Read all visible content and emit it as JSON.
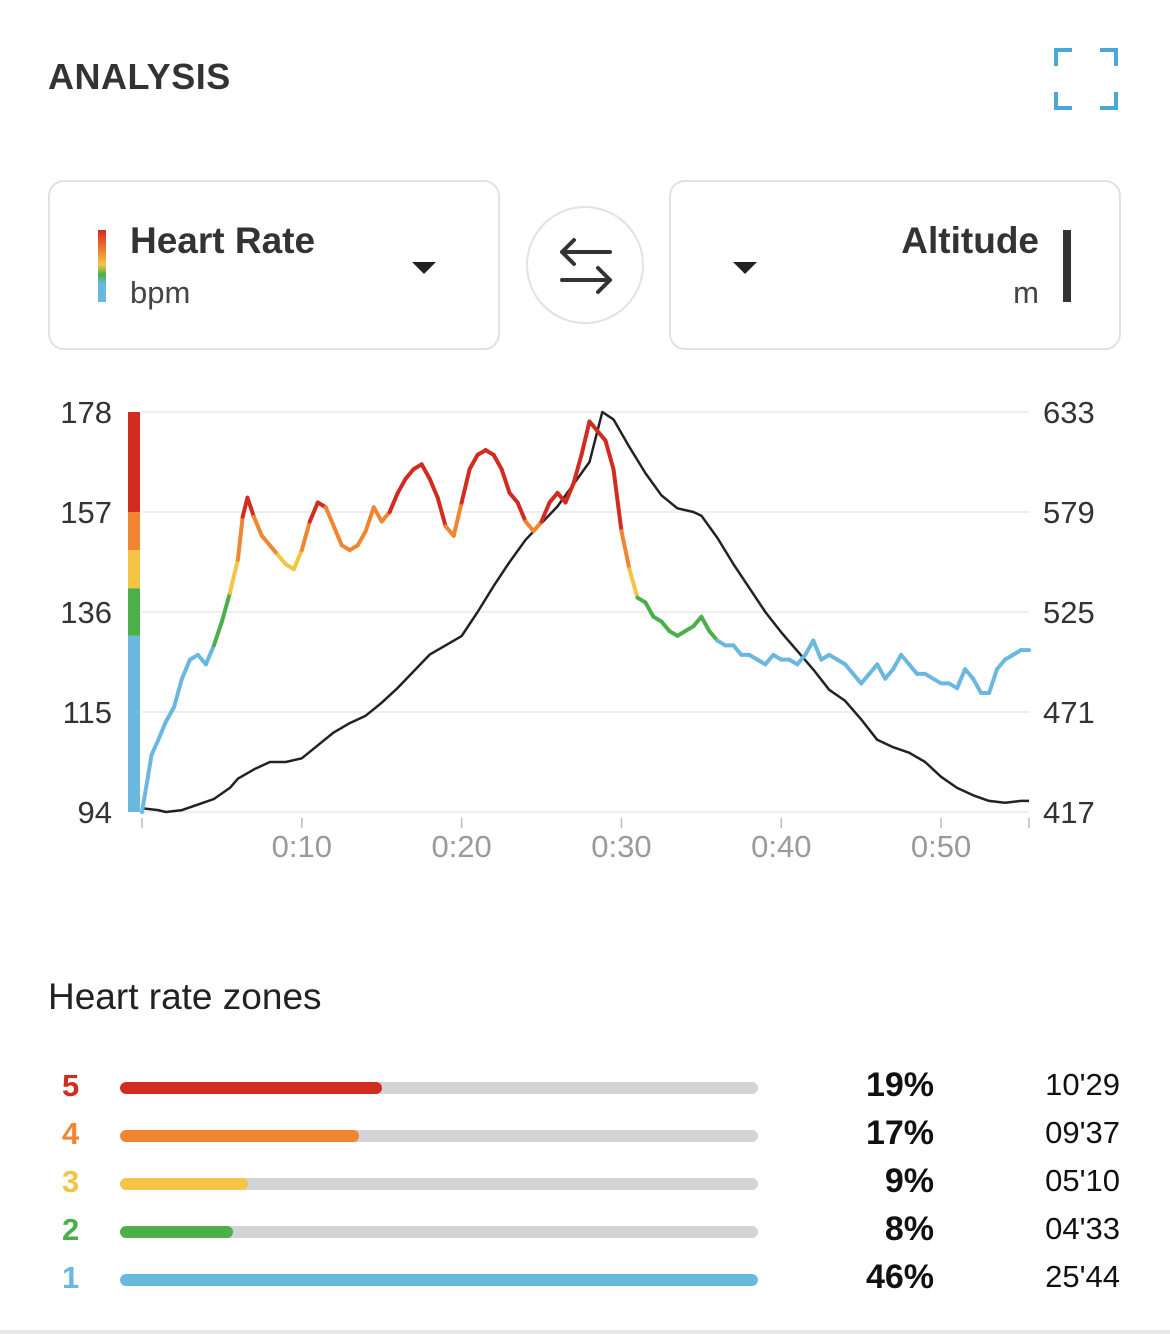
{
  "header": {
    "title": "ANALYSIS"
  },
  "selectors": {
    "left": {
      "name": "Heart Rate",
      "unit": "bpm"
    },
    "right": {
      "name": "Altitude",
      "unit": "m"
    }
  },
  "colors": {
    "zone5": "#d22b1f",
    "zone4": "#f08532",
    "zone3": "#f5c445",
    "zone2": "#4caf4a",
    "zone1": "#6ab8e0",
    "altitude": "#222222",
    "accent": "#4aa8d8"
  },
  "chart_data": {
    "type": "line",
    "x_unit": "minutes",
    "xlim": [
      0,
      55.5
    ],
    "x_ticks": [
      {
        "value": 10,
        "label": "0:10"
      },
      {
        "value": 20,
        "label": "0:20"
      },
      {
        "value": 30,
        "label": "0:30"
      },
      {
        "value": 40,
        "label": "0:40"
      },
      {
        "value": 50,
        "label": "0:50"
      }
    ],
    "y_left": {
      "label": "Heart Rate (bpm)",
      "lim": [
        94,
        178
      ],
      "ticks": [
        "178",
        "157",
        "136",
        "115",
        "94"
      ]
    },
    "y_right": {
      "label": "Altitude (m)",
      "lim": [
        417,
        633
      ],
      "ticks": [
        "633",
        "579",
        "525",
        "471",
        "417"
      ]
    },
    "zone_bounds_bpm": [
      94,
      131,
      141,
      149,
      157,
      178
    ],
    "series": [
      {
        "name": "Heart Rate",
        "axis": "left",
        "points": [
          [
            0.0,
            94
          ],
          [
            0.3,
            100
          ],
          [
            0.6,
            106
          ],
          [
            1.0,
            109
          ],
          [
            1.5,
            113
          ],
          [
            2.0,
            116
          ],
          [
            2.5,
            122
          ],
          [
            3.0,
            126
          ],
          [
            3.5,
            127
          ],
          [
            4.0,
            125
          ],
          [
            4.5,
            129
          ],
          [
            5.0,
            134
          ],
          [
            5.5,
            140
          ],
          [
            6.0,
            147
          ],
          [
            6.3,
            156
          ],
          [
            6.6,
            160
          ],
          [
            7.0,
            156
          ],
          [
            7.5,
            152
          ],
          [
            8.0,
            150
          ],
          [
            8.5,
            148
          ],
          [
            9.0,
            146
          ],
          [
            9.5,
            145
          ],
          [
            10.0,
            149
          ],
          [
            10.5,
            155
          ],
          [
            11.0,
            159
          ],
          [
            11.5,
            158
          ],
          [
            12.0,
            154
          ],
          [
            12.5,
            150
          ],
          [
            13.0,
            149
          ],
          [
            13.5,
            150
          ],
          [
            14.0,
            153
          ],
          [
            14.5,
            158
          ],
          [
            15.0,
            155
          ],
          [
            15.5,
            157
          ],
          [
            16.0,
            161
          ],
          [
            16.5,
            164
          ],
          [
            17.0,
            166
          ],
          [
            17.5,
            167
          ],
          [
            18.0,
            164
          ],
          [
            18.5,
            160
          ],
          [
            19.0,
            154
          ],
          [
            19.5,
            152
          ],
          [
            20.0,
            159
          ],
          [
            20.5,
            166
          ],
          [
            21.0,
            169
          ],
          [
            21.5,
            170
          ],
          [
            22.0,
            169
          ],
          [
            22.5,
            166
          ],
          [
            23.0,
            161
          ],
          [
            23.5,
            159
          ],
          [
            24.0,
            155
          ],
          [
            24.5,
            153
          ],
          [
            25.0,
            155
          ],
          [
            25.5,
            159
          ],
          [
            26.0,
            161
          ],
          [
            26.5,
            159
          ],
          [
            27.0,
            163
          ],
          [
            27.5,
            169
          ],
          [
            28.0,
            176
          ],
          [
            28.5,
            174
          ],
          [
            29.0,
            172
          ],
          [
            29.5,
            166
          ],
          [
            30.0,
            153
          ],
          [
            30.5,
            145
          ],
          [
            31.0,
            139
          ],
          [
            31.5,
            138
          ],
          [
            32.0,
            135
          ],
          [
            32.5,
            134
          ],
          [
            33.0,
            132
          ],
          [
            33.5,
            131
          ],
          [
            34.0,
            132
          ],
          [
            34.5,
            133
          ],
          [
            35.0,
            135
          ],
          [
            35.5,
            132
          ],
          [
            36.0,
            130
          ],
          [
            36.5,
            129
          ],
          [
            37.0,
            129
          ],
          [
            37.5,
            127
          ],
          [
            38.0,
            127
          ],
          [
            38.5,
            126
          ],
          [
            39.0,
            125
          ],
          [
            39.5,
            127
          ],
          [
            40.0,
            126
          ],
          [
            40.5,
            126
          ],
          [
            41.0,
            125
          ],
          [
            41.5,
            127
          ],
          [
            42.0,
            130
          ],
          [
            42.5,
            126
          ],
          [
            43.0,
            127
          ],
          [
            43.5,
            126
          ],
          [
            44.0,
            125
          ],
          [
            44.5,
            123
          ],
          [
            45.0,
            121
          ],
          [
            45.5,
            123
          ],
          [
            46.0,
            125
          ],
          [
            46.5,
            122
          ],
          [
            47.0,
            124
          ],
          [
            47.5,
            127
          ],
          [
            48.0,
            125
          ],
          [
            48.5,
            123
          ],
          [
            49.0,
            123
          ],
          [
            49.5,
            122
          ],
          [
            50.0,
            121
          ],
          [
            50.5,
            121
          ],
          [
            51.0,
            120
          ],
          [
            51.5,
            124
          ],
          [
            52.0,
            122
          ],
          [
            52.5,
            119
          ],
          [
            53.0,
            119
          ],
          [
            53.5,
            124
          ],
          [
            54.0,
            126
          ],
          [
            54.5,
            127
          ],
          [
            55.0,
            128
          ],
          [
            55.5,
            128
          ]
        ]
      },
      {
        "name": "Altitude",
        "axis": "right",
        "points": [
          [
            0.0,
            419
          ],
          [
            1.0,
            418
          ],
          [
            1.5,
            417
          ],
          [
            2.5,
            418
          ],
          [
            3.5,
            421
          ],
          [
            4.5,
            424
          ],
          [
            5.5,
            430
          ],
          [
            6.0,
            435
          ],
          [
            7.0,
            440
          ],
          [
            8.0,
            444
          ],
          [
            9.0,
            444
          ],
          [
            10.0,
            446
          ],
          [
            11.0,
            453
          ],
          [
            12.0,
            460
          ],
          [
            13.0,
            465
          ],
          [
            14.0,
            469
          ],
          [
            15.0,
            476
          ],
          [
            16.0,
            484
          ],
          [
            17.0,
            493
          ],
          [
            18.0,
            502
          ],
          [
            19.0,
            507
          ],
          [
            20.0,
            512
          ],
          [
            21.0,
            525
          ],
          [
            22.0,
            539
          ],
          [
            23.0,
            552
          ],
          [
            24.0,
            564
          ],
          [
            25.0,
            573
          ],
          [
            26.0,
            582
          ],
          [
            27.0,
            594
          ],
          [
            28.0,
            606
          ],
          [
            28.8,
            633
          ],
          [
            29.5,
            629
          ],
          [
            30.5,
            614
          ],
          [
            31.5,
            600
          ],
          [
            32.5,
            588
          ],
          [
            33.5,
            581
          ],
          [
            34.5,
            579
          ],
          [
            35.0,
            577
          ],
          [
            36.0,
            565
          ],
          [
            37.0,
            551
          ],
          [
            38.0,
            538
          ],
          [
            39.0,
            525
          ],
          [
            40.0,
            514
          ],
          [
            41.0,
            504
          ],
          [
            42.0,
            494
          ],
          [
            43.0,
            483
          ],
          [
            44.0,
            477
          ],
          [
            45.0,
            467
          ],
          [
            46.0,
            456
          ],
          [
            47.0,
            452
          ],
          [
            48.0,
            449
          ],
          [
            49.0,
            444
          ],
          [
            50.0,
            436
          ],
          [
            51.0,
            430
          ],
          [
            52.0,
            426
          ],
          [
            53.0,
            423
          ],
          [
            54.0,
            422
          ],
          [
            55.0,
            423
          ],
          [
            55.5,
            423
          ]
        ]
      }
    ]
  },
  "zones": {
    "title": "Heart rate zones",
    "items": [
      {
        "zone": "5",
        "percent": "19%",
        "fraction": 0.41,
        "time": "10'29",
        "color": "#d22b1f"
      },
      {
        "zone": "4",
        "percent": "17%",
        "fraction": 0.375,
        "time": "09'37",
        "color": "#f08532"
      },
      {
        "zone": "3",
        "percent": "9%",
        "fraction": 0.2,
        "time": "05'10",
        "color": "#f5c445"
      },
      {
        "zone": "2",
        "percent": "8%",
        "fraction": 0.177,
        "time": "04'33",
        "color": "#4caf4a"
      },
      {
        "zone": "1",
        "percent": "46%",
        "fraction": 1.0,
        "time": "25'44",
        "color": "#6ab8e0"
      }
    ]
  }
}
